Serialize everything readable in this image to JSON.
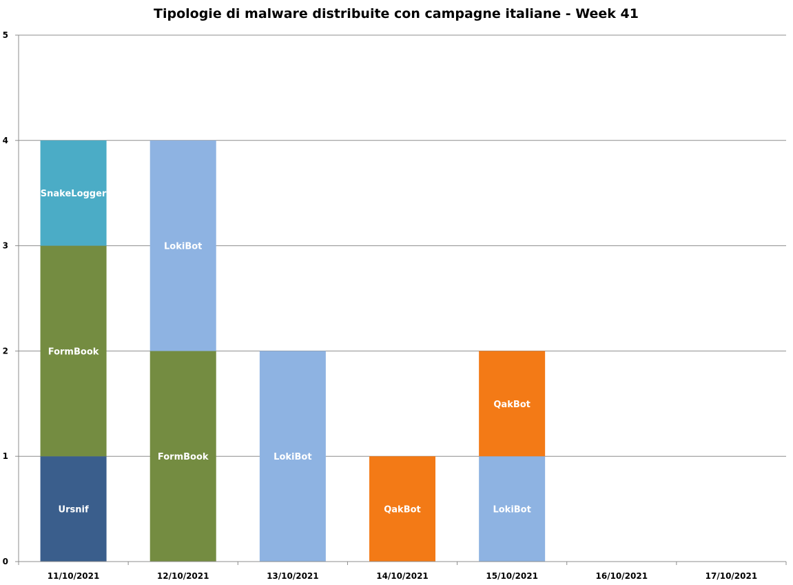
{
  "chart_data": {
    "type": "bar",
    "stacked": true,
    "title": "Tipologie di malware distribuite con campagne italiane - Week 41",
    "xlabel": "",
    "ylabel": "",
    "ylim": [
      0,
      5
    ],
    "yticks": [
      0,
      1,
      2,
      3,
      4,
      5
    ],
    "grid": true,
    "legend": "none",
    "categories": [
      "11/10/2021",
      "12/10/2021",
      "13/10/2021",
      "14/10/2021",
      "15/10/2021",
      "16/10/2021",
      "17/10/2021"
    ],
    "series": [
      {
        "name": "Ursnif",
        "color": "#3a5e8c",
        "values": [
          1,
          0,
          0,
          0,
          0,
          0,
          0
        ]
      },
      {
        "name": "FormBook",
        "color": "#748c41",
        "values": [
          2,
          2,
          0,
          0,
          0,
          0,
          0
        ]
      },
      {
        "name": "SnakeLogger",
        "color": "#4bacc6",
        "values": [
          1,
          0,
          0,
          0,
          0,
          0,
          0
        ]
      },
      {
        "name": "LokiBot",
        "color": "#8eb3e2",
        "values": [
          0,
          2,
          2,
          0,
          1,
          0,
          0
        ]
      },
      {
        "name": "QakBot",
        "color": "#f37a16",
        "values": [
          0,
          0,
          0,
          1,
          1,
          0,
          0
        ]
      }
    ],
    "stack_order": [
      [
        "Ursnif",
        "FormBook",
        "SnakeLogger"
      ],
      [
        "FormBook",
        "LokiBot"
      ],
      [
        "LokiBot"
      ],
      [
        "QakBot"
      ],
      [
        "LokiBot",
        "QakBot"
      ],
      [],
      []
    ],
    "colors": {
      "gridline": "#8c8c8c",
      "axis": "#8c8c8c"
    }
  }
}
